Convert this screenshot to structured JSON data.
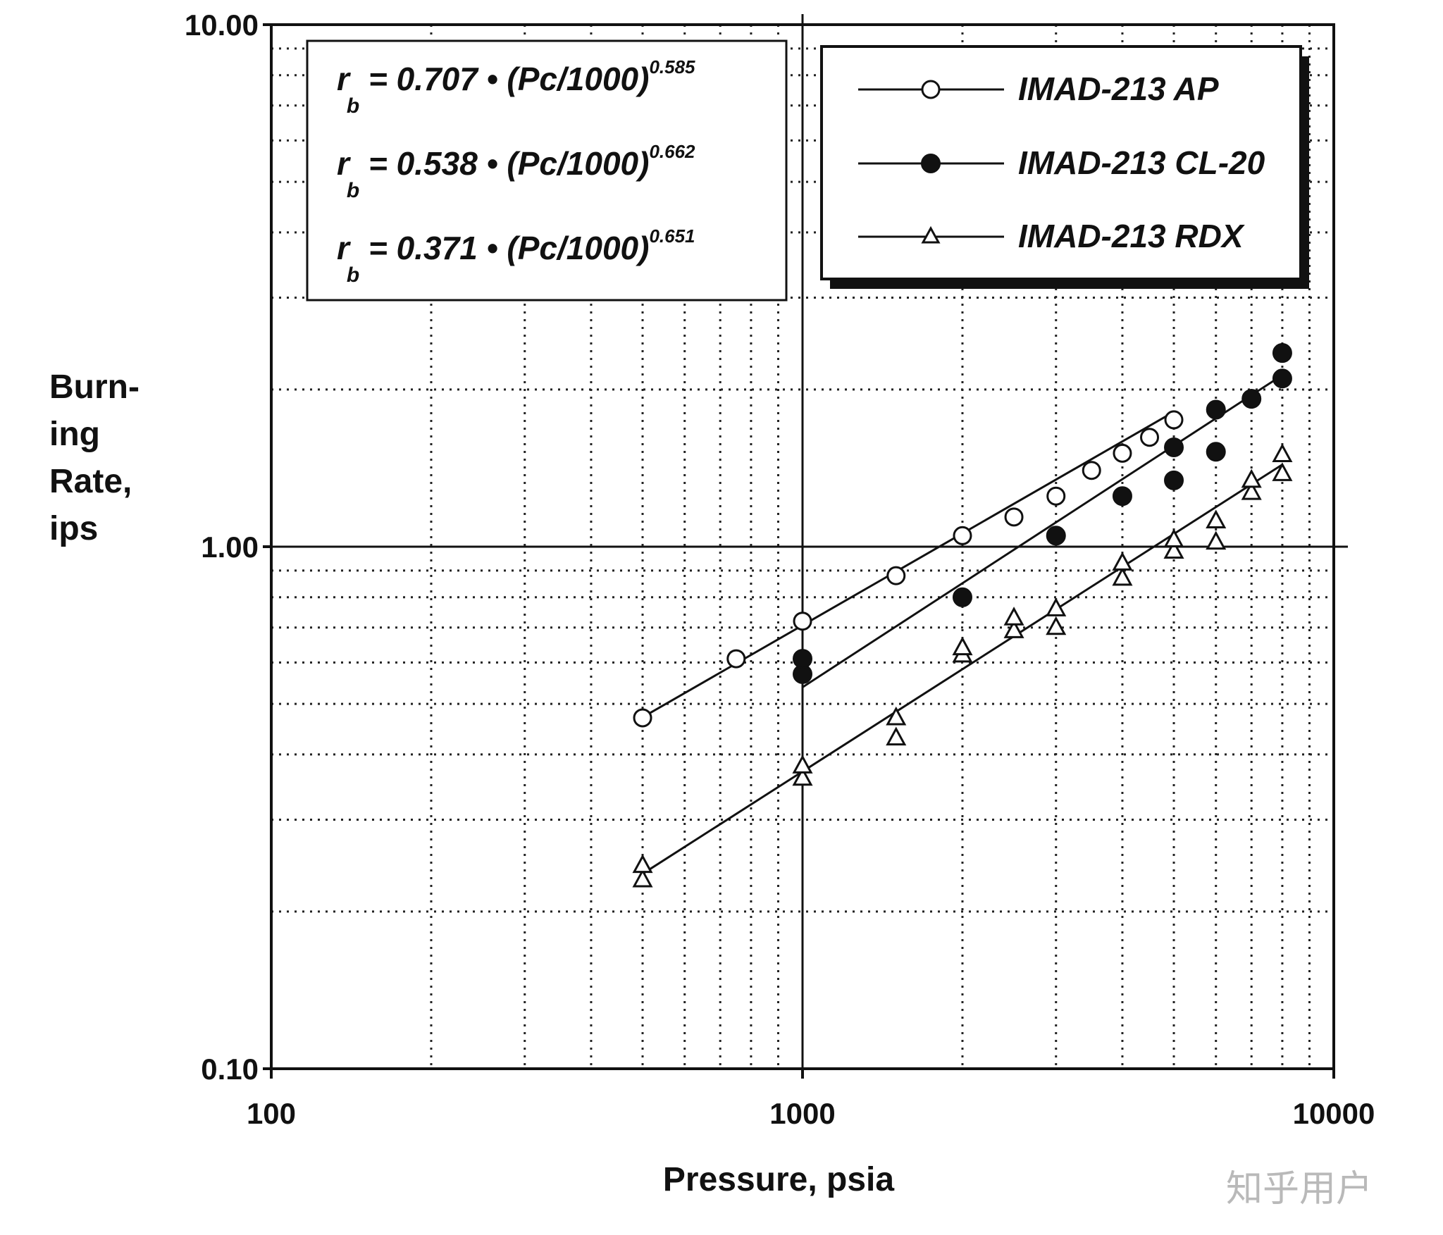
{
  "chart_data": {
    "type": "scatter",
    "x_scale": "log",
    "y_scale": "log",
    "xlim": [
      100,
      10000
    ],
    "ylim": [
      0.1,
      10
    ],
    "xlabel": "Pressure, psia",
    "ylabel": [
      "Burn-",
      "ing",
      "Rate,",
      "ips"
    ],
    "x_ticks": [
      "100",
      "1000",
      "10000"
    ],
    "y_ticks": [
      "10.00",
      "1.00",
      "0.10"
    ],
    "grid": true,
    "legend_position": "top-right",
    "equations": [
      {
        "lhs": "r",
        "sub": "b",
        "body": " = 0.707 • (Pc/1000)",
        "exp": "0.585"
      },
      {
        "lhs": "r",
        "sub": "b",
        "body": " = 0.538 • (Pc/1000)",
        "exp": "0.662"
      },
      {
        "lhs": "r",
        "sub": "b",
        "body": " = 0.371 • (Pc/1000)",
        "exp": "0.651"
      }
    ],
    "series": [
      {
        "name": "IMAD-213 AP",
        "marker": "open-circle",
        "fit": {
          "coef": 0.707,
          "exp": 0.585,
          "x_range": [
            500,
            5000
          ]
        },
        "points": [
          [
            500,
            0.47
          ],
          [
            750,
            0.61
          ],
          [
            1000,
            0.72
          ],
          [
            1500,
            0.88
          ],
          [
            2000,
            1.05
          ],
          [
            2500,
            1.14
          ],
          [
            3000,
            1.25
          ],
          [
            3500,
            1.4
          ],
          [
            4000,
            1.51
          ],
          [
            4500,
            1.62
          ],
          [
            5000,
            1.75
          ]
        ]
      },
      {
        "name": "IMAD-213 CL-20",
        "marker": "filled-circle",
        "fit": {
          "coef": 0.538,
          "exp": 0.662,
          "x_range": [
            1000,
            8000
          ]
        },
        "points": [
          [
            1000,
            0.57
          ],
          [
            1000,
            0.61
          ],
          [
            2000,
            0.8
          ],
          [
            3000,
            1.05
          ],
          [
            4000,
            1.25
          ],
          [
            5000,
            1.34
          ],
          [
            5000,
            1.55
          ],
          [
            6000,
            1.52
          ],
          [
            6000,
            1.83
          ],
          [
            7000,
            1.92
          ],
          [
            8000,
            2.1
          ],
          [
            8000,
            2.35
          ]
        ]
      },
      {
        "name": "IMAD-213 RDX",
        "marker": "open-triangle",
        "fit": {
          "coef": 0.371,
          "exp": 0.651,
          "x_range": [
            500,
            8000
          ]
        },
        "points": [
          [
            500,
            0.23
          ],
          [
            500,
            0.245
          ],
          [
            1000,
            0.36
          ],
          [
            1000,
            0.38
          ],
          [
            1500,
            0.43
          ],
          [
            1500,
            0.47
          ],
          [
            2000,
            0.62
          ],
          [
            2000,
            0.64
          ],
          [
            2500,
            0.69
          ],
          [
            2500,
            0.73
          ],
          [
            3000,
            0.7
          ],
          [
            3000,
            0.76
          ],
          [
            4000,
            0.87
          ],
          [
            4000,
            0.93
          ],
          [
            5000,
            0.98
          ],
          [
            5000,
            1.03
          ],
          [
            6000,
            1.02
          ],
          [
            6000,
            1.12
          ],
          [
            7000,
            1.27
          ],
          [
            7000,
            1.34
          ],
          [
            8000,
            1.38
          ],
          [
            8000,
            1.5
          ]
        ]
      }
    ]
  },
  "watermark": "知乎用户"
}
